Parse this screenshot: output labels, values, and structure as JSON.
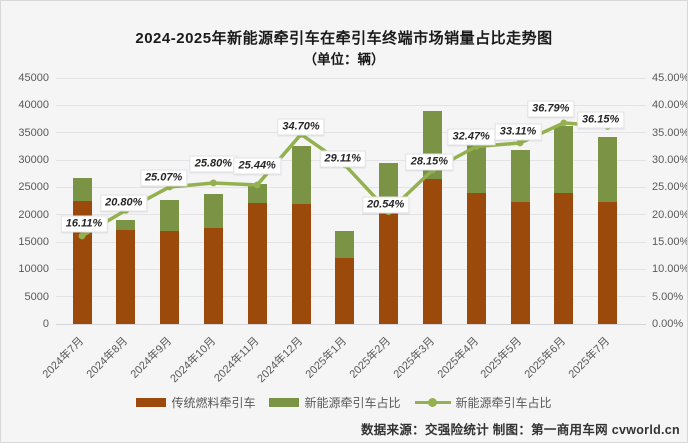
{
  "title": {
    "line1": "2024-2025年新能源牵引车在牵引车终端市场销量占比走势图",
    "line2": "（单位：辆）"
  },
  "footer": {
    "text": "数据来源：交强险统计 制图：第一商用车网 cvworld.cn"
  },
  "colors": {
    "traditional_bar": "#9B4A0C",
    "newenergy_bar": "#7A9345",
    "share_line": "#93B14E",
    "background": "#F5F5F6",
    "axis_text": "#595959"
  },
  "chart_data": {
    "type": "bar",
    "subtype": "stacked-bars-with-percent-line",
    "categories": [
      "2024年7月",
      "2024年8月",
      "2024年9月",
      "2024年10月",
      "2024年11月",
      "2024年12月",
      "2025年1月",
      "2025年2月",
      "2025年3月",
      "2025年4月",
      "2025年5月",
      "2025年6月",
      "2025年7月"
    ],
    "series": [
      {
        "name": "传统燃料牵引车",
        "type": "bar",
        "color": "#9B4A0C",
        "axis": "left",
        "values": [
          22500,
          17200,
          17000,
          17500,
          22200,
          22000,
          12000,
          23200,
          26500,
          24000,
          22300,
          24000,
          22300
        ]
      },
      {
        "name": "新能源牵引车占比",
        "type": "bar",
        "color": "#7A9345",
        "axis": "left",
        "values": [
          4300,
          1900,
          5700,
          6200,
          3400,
          10500,
          5000,
          6300,
          12400,
          11600,
          9600,
          12300,
          12000
        ]
      },
      {
        "name": "新能源牵引车占比",
        "type": "line",
        "color": "#93B14E",
        "axis": "right",
        "values": [
          16.11,
          20.8,
          25.07,
          25.8,
          25.44,
          34.7,
          29.11,
          20.54,
          28.15,
          32.47,
          33.11,
          36.79,
          36.15
        ]
      }
    ],
    "point_labels": [
      "16.11%",
      "20.80%",
      "25.07%",
      "25.80%",
      "25.44%",
      "34.70%",
      "29.11%",
      "20.54%",
      "28.15%",
      "32.47%",
      "33.11%",
      "36.79%",
      "36.15%"
    ],
    "left_axis": {
      "min": 0,
      "max": 45000,
      "step": 5000,
      "tick_labels": [
        "0",
        "5000",
        "10000",
        "15000",
        "20000",
        "25000",
        "30000",
        "35000",
        "40000",
        "45000"
      ]
    },
    "right_axis": {
      "min": 0,
      "max": 45,
      "step": 5,
      "tick_labels": [
        "0.00%",
        "5.00%",
        "10.00%",
        "15.00%",
        "20.00%",
        "25.00%",
        "30.00%",
        "35.00%",
        "40.00%",
        "45.00%"
      ]
    },
    "grid": true,
    "legend_position": "bottom",
    "legend": [
      {
        "marker": "rect",
        "color": "#9B4A0C",
        "label": "传统燃料牵引车"
      },
      {
        "marker": "rect",
        "color": "#7A9345",
        "label": "新能源牵引车占比"
      },
      {
        "marker": "line-dot",
        "color": "#93B14E",
        "label": "新能源牵引车占比"
      }
    ]
  }
}
